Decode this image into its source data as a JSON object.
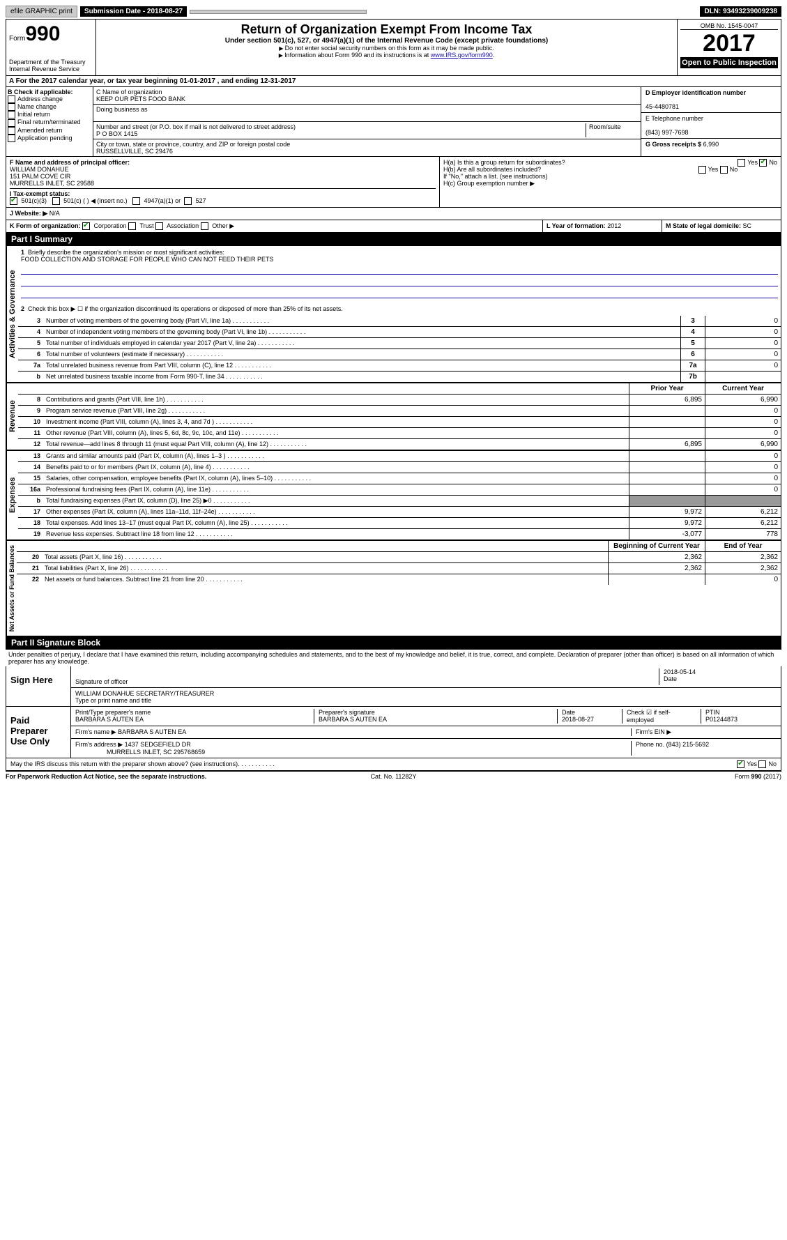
{
  "topbar": {
    "efile": "efile GRAPHIC print",
    "submission_label": "Submission Date - 2018-08-27",
    "dln": "DLN: 93493239009238"
  },
  "header": {
    "form_word": "Form",
    "form_num": "990",
    "dept1": "Department of the Treasury",
    "dept2": "Internal Revenue Service",
    "title": "Return of Organization Exempt From Income Tax",
    "subtitle": "Under section 501(c), 527, or 4947(a)(1) of the Internal Revenue Code (except private foundations)",
    "note1": "Do not enter social security numbers on this form as it may be made public.",
    "note2_a": "Information about Form 990 and its instructions is at ",
    "note2_link": "www.IRS.gov/form990",
    "omb": "OMB No. 1545-0047",
    "year": "2017",
    "inspect": "Open to Public Inspection"
  },
  "lineA": "For the 2017 calendar year, or tax year beginning 01-01-2017   , and ending 12-31-2017",
  "B": {
    "label": "B Check if applicable:",
    "items": [
      "Address change",
      "Name change",
      "Initial return",
      "Final return/terminated",
      "Amended return",
      "Application pending"
    ]
  },
  "C": {
    "name_label": "C Name of organization",
    "name": "KEEP OUR PETS FOOD BANK",
    "dba_label": "Doing business as",
    "street_label": "Number and street (or P.O. box if mail is not delivered to street address)",
    "room_label": "Room/suite",
    "street": "P O BOX 1415",
    "city_label": "City or town, state or province, country, and ZIP or foreign postal code",
    "city": "RUSSELLVILLE, SC  29476"
  },
  "D": {
    "label": "D Employer identification number",
    "value": "45-4480781"
  },
  "E": {
    "label": "E Telephone number",
    "value": "(843) 997-7698"
  },
  "G": {
    "label": "G Gross receipts $",
    "value": "6,990"
  },
  "F": {
    "label": "F  Name and address of principal officer:",
    "name": "WILLIAM DONAHUE",
    "addr1": "151 PALM COVE CIR",
    "addr2": "MURRELLS INLET, SC  29588"
  },
  "H": {
    "a": "H(a)  Is this a group return for subordinates?",
    "b": "H(b)  Are all subordinates included?",
    "b_note": "If \"No,\" attach a list. (see instructions)",
    "c": "H(c)  Group exemption number ▶",
    "yes": "Yes",
    "no": "No"
  },
  "I": {
    "label": "I  Tax-exempt status:",
    "opts": [
      "501(c)(3)",
      "501(c) (  ) ◀ (insert no.)",
      "4947(a)(1) or",
      "527"
    ]
  },
  "J": {
    "label": "J  Website: ▶",
    "value": "N/A"
  },
  "K": {
    "label": "K Form of organization:",
    "opts": [
      "Corporation",
      "Trust",
      "Association",
      "Other ▶"
    ]
  },
  "L": {
    "label": "L Year of formation:",
    "value": "2012"
  },
  "M": {
    "label": "M State of legal domicile:",
    "value": "SC"
  },
  "part1": {
    "header": "Part I      Summary",
    "vlabels": [
      "Activities & Governance",
      "Revenue",
      "Expenses",
      "Net Assets or Fund Balances"
    ],
    "q1": "Briefly describe the organization's mission or most significant activities:",
    "mission": "FOOD COLLECTION AND STORAGE FOR PEOPLE WHO CAN NOT FEED THEIR PETS",
    "q2": "Check this box ▶ ☐  if the organization discontinued its operations or disposed of more than 25% of its net assets.",
    "lines_gov": [
      {
        "n": "3",
        "d": "Number of voting members of the governing body (Part VI, line 1a)",
        "box": "3",
        "v": "0"
      },
      {
        "n": "4",
        "d": "Number of independent voting members of the governing body (Part VI, line 1b)",
        "box": "4",
        "v": "0"
      },
      {
        "n": "5",
        "d": "Total number of individuals employed in calendar year 2017 (Part V, line 2a)",
        "box": "5",
        "v": "0"
      },
      {
        "n": "6",
        "d": "Total number of volunteers (estimate if necessary)",
        "box": "6",
        "v": "0"
      },
      {
        "n": "7a",
        "d": "Total unrelated business revenue from Part VIII, column (C), line 12",
        "box": "7a",
        "v": "0"
      },
      {
        "n": "b",
        "d": "Net unrelated business taxable income from Form 990-T, line 34",
        "box": "7b",
        "v": ""
      }
    ],
    "col_prior": "Prior Year",
    "col_curr": "Current Year",
    "lines_rev": [
      {
        "n": "8",
        "d": "Contributions and grants (Part VIII, line 1h)",
        "p": "6,895",
        "c": "6,990"
      },
      {
        "n": "9",
        "d": "Program service revenue (Part VIII, line 2g)",
        "p": "",
        "c": "0"
      },
      {
        "n": "10",
        "d": "Investment income (Part VIII, column (A), lines 3, 4, and 7d )",
        "p": "",
        "c": "0"
      },
      {
        "n": "11",
        "d": "Other revenue (Part VIII, column (A), lines 5, 6d, 8c, 9c, 10c, and 11e)",
        "p": "",
        "c": "0"
      },
      {
        "n": "12",
        "d": "Total revenue—add lines 8 through 11 (must equal Part VIII, column (A), line 12)",
        "p": "6,895",
        "c": "6,990"
      }
    ],
    "lines_exp": [
      {
        "n": "13",
        "d": "Grants and similar amounts paid (Part IX, column (A), lines 1–3 )",
        "p": "",
        "c": "0"
      },
      {
        "n": "14",
        "d": "Benefits paid to or for members (Part IX, column (A), line 4)",
        "p": "",
        "c": "0"
      },
      {
        "n": "15",
        "d": "Salaries, other compensation, employee benefits (Part IX, column (A), lines 5–10)",
        "p": "",
        "c": "0"
      },
      {
        "n": "16a",
        "d": "Professional fundraising fees (Part IX, column (A), line 11e)",
        "p": "",
        "c": "0"
      },
      {
        "n": "b",
        "d": "Total fundraising expenses (Part IX, column (D), line 25) ▶0",
        "p": "—",
        "c": "—"
      },
      {
        "n": "17",
        "d": "Other expenses (Part IX, column (A), lines 11a–11d, 11f–24e)",
        "p": "9,972",
        "c": "6,212"
      },
      {
        "n": "18",
        "d": "Total expenses. Add lines 13–17 (must equal Part IX, column (A), line 25)",
        "p": "9,972",
        "c": "6,212"
      },
      {
        "n": "19",
        "d": "Revenue less expenses. Subtract line 18 from line 12",
        "p": "-3,077",
        "c": "778"
      }
    ],
    "col_begin": "Beginning of Current Year",
    "col_end": "End of Year",
    "lines_net": [
      {
        "n": "20",
        "d": "Total assets (Part X, line 16)",
        "p": "2,362",
        "c": "2,362"
      },
      {
        "n": "21",
        "d": "Total liabilities (Part X, line 26)",
        "p": "2,362",
        "c": "2,362"
      },
      {
        "n": "22",
        "d": "Net assets or fund balances. Subtract line 21 from line 20",
        "p": "",
        "c": "0"
      }
    ]
  },
  "part2": {
    "header": "Part II     Signature Block",
    "perjury": "Under penalties of perjury, I declare that I have examined this return, including accompanying schedules and statements, and to the best of my knowledge and belief, it is true, correct, and complete. Declaration of preparer (other than officer) is based on all information of which preparer has any knowledge.",
    "sign_here": "Sign Here",
    "sig_officer_label": "Signature of officer",
    "sig_date": "2018-05-14",
    "date_label": "Date",
    "officer_name": "WILLIAM DONAHUE  SECRETARY/TREASURER",
    "officer_name_label": "Type or print name and title",
    "paid": "Paid Preparer Use Only",
    "prep_name_label": "Print/Type preparer's name",
    "prep_name": "BARBARA S AUTEN EA",
    "prep_sig_label": "Preparer's signature",
    "prep_sig": "BARBARA S AUTEN EA",
    "prep_date_label": "Date",
    "prep_date": "2018-08-27",
    "self_emp": "Check ☑ if self-employed",
    "ptin_label": "PTIN",
    "ptin": "P01244873",
    "firm_name_label": "Firm's name    ▶",
    "firm_name": "BARBARA S AUTEN EA",
    "firm_ein_label": "Firm's EIN ▶",
    "firm_addr_label": "Firm's address ▶",
    "firm_addr": "1437 SEDGEFIELD DR",
    "firm_addr2": "MURRELLS INLET, SC  295768659",
    "phone_label": "Phone no.",
    "phone": "(843) 215-5692",
    "discuss": "May the IRS discuss this return with the preparer shown above? (see instructions)"
  },
  "footer": {
    "left": "For Paperwork Reduction Act Notice, see the separate instructions.",
    "mid": "Cat. No. 11282Y",
    "right": "Form 990 (2017)"
  }
}
